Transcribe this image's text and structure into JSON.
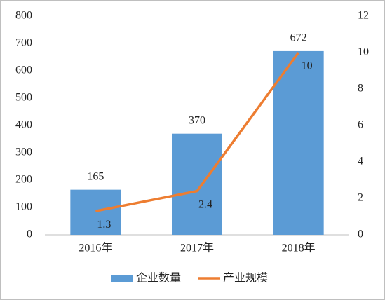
{
  "chart_data": {
    "type": "bar",
    "categories": [
      "2016年",
      "2017年",
      "2018年"
    ],
    "series": [
      {
        "name": "企业数量",
        "type": "bar",
        "color": "#5b9bd5",
        "values": [
          165,
          370,
          672
        ]
      },
      {
        "name": "产业规模",
        "type": "line",
        "color": "#ed7d31",
        "axis": "y2",
        "values": [
          1.3,
          2.4,
          10
        ]
      }
    ],
    "ylim": [
      0,
      800
    ],
    "yticks": [
      0,
      100,
      200,
      300,
      400,
      500,
      600,
      700,
      800
    ],
    "y2lim": [
      0,
      12
    ],
    "y2ticks": [
      0,
      2,
      4,
      6,
      8,
      10,
      12
    ],
    "grid": false,
    "legend": "bottom"
  }
}
